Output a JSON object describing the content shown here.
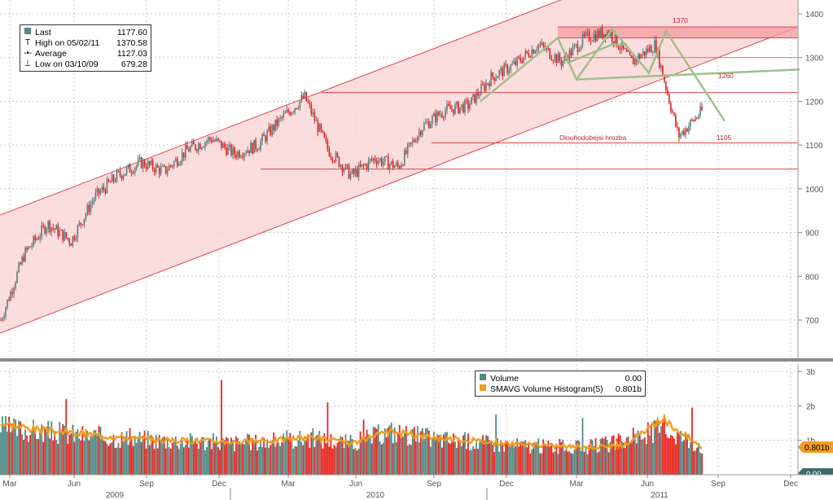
{
  "colors": {
    "channel_fill": "#fbd7d8",
    "channel_line": "#e0464d",
    "price_up": "#5a7d7a",
    "price_down": "#e02020",
    "trend_green": "#9fbf8c",
    "volume_bar_red": "#e8231d",
    "volume_bar_teal": "#4e8a86",
    "smavg_line": "#f39c1f",
    "grid": "#bdbdbd",
    "axis_text": "#555555"
  },
  "legend_price": {
    "rows": [
      {
        "icon": "last-square-icon",
        "label": "Last",
        "value": "1177.60"
      },
      {
        "icon": "high-marker-icon",
        "label": "High on 05/02/11",
        "value": "1370.58"
      },
      {
        "icon": "average-marker-icon",
        "label": "Average",
        "value": "1127.03"
      },
      {
        "icon": "low-marker-icon",
        "label": "Low on 03/10/09",
        "value": "679.28"
      }
    ]
  },
  "legend_volume": {
    "rows": [
      {
        "icon": "volume-square-icon",
        "label": "Volume",
        "value": "0.00"
      },
      {
        "icon": "smavg-square-icon",
        "label": "SMAVG Volume Histogram(5)",
        "value": "0.801b"
      }
    ]
  },
  "chart_data": [
    {
      "type": "candlestick",
      "ylim": [
        620,
        1420
      ],
      "y_ticks": [
        700,
        800,
        900,
        1000,
        1100,
        1200,
        1300,
        1400
      ],
      "x_months": [
        "Mar",
        "Jun",
        "Sep",
        "Dec",
        "Mar",
        "Jun",
        "Sep",
        "Dec",
        "Mar",
        "Jun",
        "Sep",
        "Dec"
      ],
      "x_years": [
        "2009",
        "2010",
        "2011"
      ],
      "grid": true,
      "annotations": [
        {
          "text": "1370",
          "value": 1370
        },
        {
          "text": "1260",
          "value": 1260
        },
        {
          "text": "1105",
          "value": 1105
        },
        {
          "text": "Dlouhodobejsi hrozba",
          "value": 1105
        }
      ],
      "horizontal_levels": [
        1370,
        1345,
        1220,
        1105,
        1045
      ],
      "trend_channel": {
        "lower_start": 670,
        "lower_end": 1370,
        "upper_start": 940,
        "upper_end": 1640
      },
      "price_path": [
        [
          "Mar 2009",
          700
        ],
        [
          "Apr 2009",
          850
        ],
        [
          "May 2009",
          920
        ],
        [
          "Jun 2009",
          880
        ],
        [
          "Jul 2009",
          980
        ],
        [
          "Aug 2009",
          1030
        ],
        [
          "Sep 2009",
          1060
        ],
        [
          "Oct 2009",
          1040
        ],
        [
          "Nov 2009",
          1090
        ],
        [
          "Dec 2009",
          1115
        ],
        [
          "Jan 2010",
          1080
        ],
        [
          "Feb 2010",
          1100
        ],
        [
          "Mar 2010",
          1160
        ],
        [
          "Apr 2010",
          1210
        ],
        [
          "May 2010",
          1090
        ],
        [
          "Jun 2010",
          1030
        ],
        [
          "Jul 2010",
          1070
        ],
        [
          "Aug 2010",
          1050
        ],
        [
          "Sep 2010",
          1140
        ],
        [
          "Oct 2010",
          1180
        ],
        [
          "Nov 2010",
          1190
        ],
        [
          "Dec 2010",
          1255
        ],
        [
          "Jan 2011",
          1285
        ],
        [
          "Feb 2011",
          1330
        ],
        [
          "Mar 2011",
          1290
        ],
        [
          "Apr 2011",
          1345
        ],
        [
          "May 2011",
          1360
        ],
        [
          "Jun 2011",
          1290
        ],
        [
          "Jul 2011",
          1330
        ],
        [
          "Aug 2011",
          1120
        ],
        [
          "Aug 2011 end",
          1177.6
        ]
      ],
      "last": 1177.6,
      "high": 1370.58,
      "average": 1127.03,
      "low": 679.28
    },
    {
      "type": "bar",
      "ylim": [
        0,
        3
      ],
      "y_ticks": [
        "0.00",
        "1b",
        "2b",
        "3b"
      ],
      "value_tag": "0.801b",
      "series": [
        {
          "name": "Volume",
          "values_approx_b": [
            1.4,
            1.3,
            1.2,
            1.1,
            1.05,
            1.0,
            0.95,
            1.0,
            1.1,
            0.95,
            1.3,
            1.1,
            1.0,
            0.9,
            0.85,
            0.8,
            1.0,
            1.4,
            0.85
          ]
        },
        {
          "name": "SMAVG Volume Histogram(5)",
          "values_approx_b": [
            1.5,
            1.3,
            1.2,
            1.1,
            1.0,
            1.0,
            0.95,
            1.0,
            1.1,
            0.9,
            1.25,
            1.1,
            1.0,
            0.9,
            0.85,
            0.8,
            0.85,
            1.6,
            0.8
          ]
        }
      ]
    }
  ]
}
